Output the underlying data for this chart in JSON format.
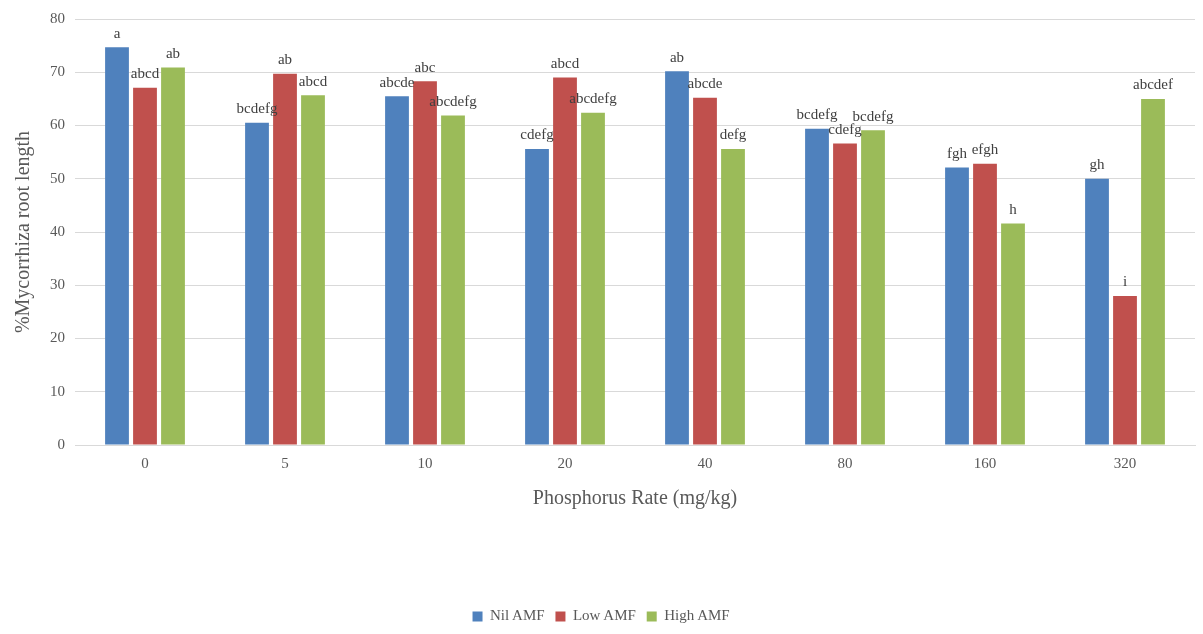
{
  "chart_data": {
    "type": "bar",
    "xlabel": "Phosphorus Rate (mg/kg)",
    "ylabel": "%Mycorrhiza root length",
    "categories": [
      "0",
      "5",
      "10",
      "20",
      "40",
      "80",
      "160",
      "320"
    ],
    "series": [
      {
        "name": "Nil AMF",
        "color": "#4f81bd",
        "values": [
          74.7,
          60.5,
          65.5,
          55.6,
          70.2,
          59.4,
          52.1,
          50.0
        ],
        "value_labels": [
          "a",
          "bcdefg",
          "abcde",
          "cdefg",
          "ab",
          "bcdefg",
          "fgh",
          "gh"
        ]
      },
      {
        "name": "Low AMF",
        "color": "#c0504d",
        "values": [
          67.1,
          69.7,
          68.3,
          69.0,
          65.2,
          56.6,
          52.8,
          28.0
        ],
        "value_labels": [
          "abcd",
          "ab",
          "abc",
          "abcd",
          "abcde",
          "cdefg",
          "efgh",
          "i"
        ]
      },
      {
        "name": "High AMF",
        "color": "#9bbb59",
        "values": [
          70.9,
          65.7,
          61.9,
          62.4,
          55.6,
          59.1,
          41.6,
          65.0
        ],
        "value_labels": [
          "ab",
          "abcd",
          "abcdefg",
          "abcdefg",
          "defg",
          "bcdefg",
          "h",
          "abcdef"
        ]
      }
    ],
    "ylim": [
      0,
      80
    ],
    "yticks": [
      0,
      10,
      20,
      30,
      40,
      50,
      60,
      70,
      80
    ],
    "grid": "y",
    "legend": "bottom"
  }
}
